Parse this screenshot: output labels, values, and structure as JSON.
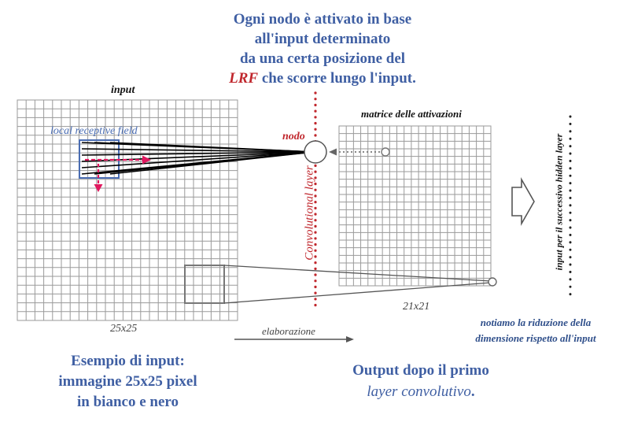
{
  "top_caption": {
    "line1": "Ogni nodo è attivato in base",
    "line2": "all'input determinato",
    "line3": "da una certa posizione del",
    "line4_lrf": "LRF",
    "line4_rest": " che scorre lungo l'input."
  },
  "labels": {
    "input": "input",
    "local_receptive_field": "local receptive field",
    "nodo": "nodo",
    "matrice": "matrice delle attivazioni",
    "convolutional_layer": "Convolutional layer",
    "next_layer": "input per il successivo hidden layer",
    "input_size": "25x25",
    "output_size": "21x21",
    "elaborazione": "elaborazione",
    "note_line1": "notiamo la riduzione della",
    "note_line2": "dimensione rispetto all'input"
  },
  "input_caption": {
    "line1": "Esempio di input:",
    "line2": "immagine 25x25 pixel",
    "line3": "in bianco e nero"
  },
  "output_caption": {
    "line1": "Output dopo il primo",
    "line2_italic": "layer convolutivo",
    "line2_end": "."
  },
  "grids": {
    "input_cells": 25,
    "output_cells": 21
  },
  "colors": {
    "blue_text": "#3f5fa3",
    "red_accent": "#c0272d",
    "lrf_box": "#4a6db3",
    "arrow_magenta": "#e0185f",
    "grid_line": "#9a9a9a"
  }
}
